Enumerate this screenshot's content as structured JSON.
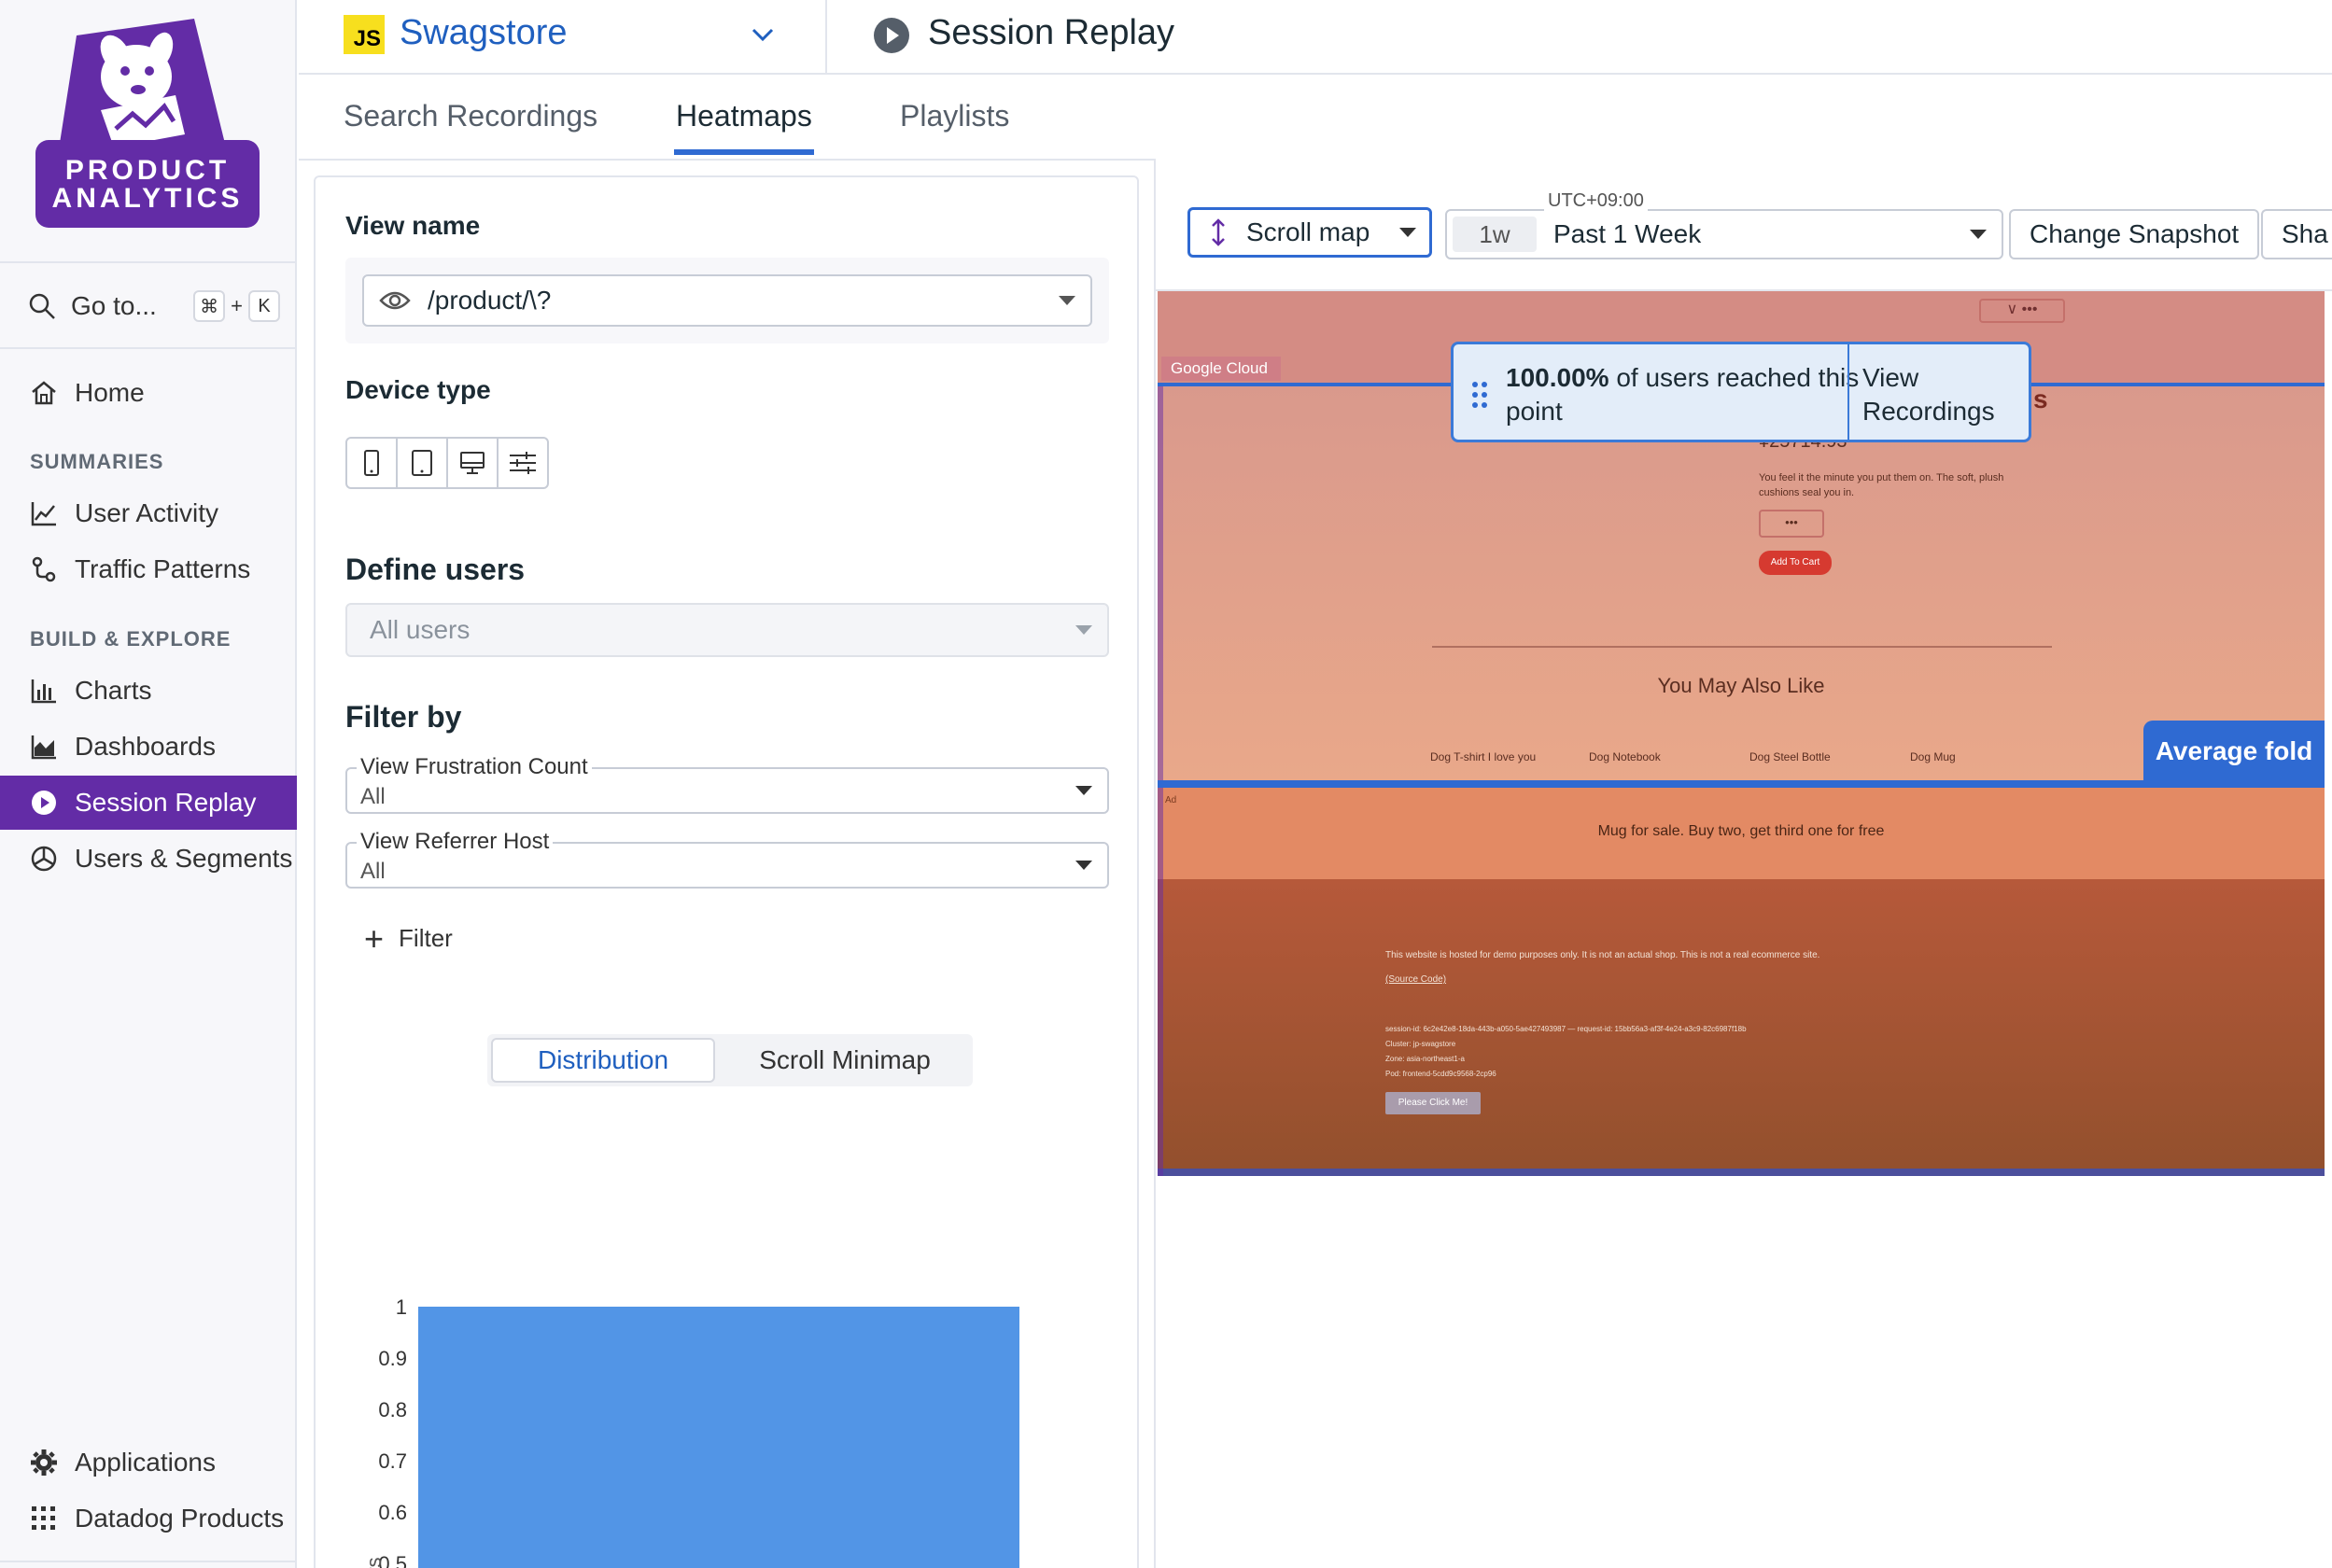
{
  "sidebar": {
    "logo": {
      "line1": "PRODUCT",
      "line2": "ANALYTICS"
    },
    "goto": {
      "label": "Go to...",
      "key1": "⌘",
      "plus": "+",
      "key2": "K"
    },
    "home": "Home",
    "summaries_label": "SUMMARIES",
    "summaries": [
      "User Activity",
      "Traffic Patterns"
    ],
    "build_label": "BUILD & EXPLORE",
    "build": [
      "Charts",
      "Dashboards",
      "Session Replay",
      "Users & Segments"
    ],
    "bottom": [
      "Applications",
      "Datadog Products"
    ]
  },
  "topbar": {
    "js_badge": "JS",
    "app_name": "Swagstore",
    "page_title": "Session Replay"
  },
  "tabs": [
    "Search Recordings",
    "Heatmaps",
    "Playlists"
  ],
  "panel": {
    "view_name_label": "View name",
    "view_name_value": "/product/\\?",
    "device_type_label": "Device type",
    "define_users_label": "Define users",
    "define_users_value": "All users",
    "filter_by_label": "Filter by",
    "filters": [
      {
        "label": "View Frustration Count",
        "value": "All"
      },
      {
        "label": "View Referrer Host",
        "value": "All"
      }
    ],
    "add_filter": "Filter",
    "segment": {
      "active": "Distribution",
      "other": "Scroll Minimap"
    }
  },
  "chart_data": {
    "type": "bar",
    "categories": [
      ""
    ],
    "values": [
      1
    ],
    "ylabel": "sers",
    "yticks": [
      "1",
      "0.9",
      "0.8",
      "0.7",
      "0.6",
      "0.5"
    ],
    "ylim": [
      0.45,
      1
    ],
    "bar_color": "#5295e6"
  },
  "toolbar": {
    "mode": "Scroll map",
    "timezone": "UTC+09:00",
    "time_badge": "1w",
    "time_value": "Past 1 Week",
    "change_snapshot": "Change Snapshot",
    "share": "Sha"
  },
  "snapshot": {
    "gc_badge": "Google Cloud",
    "tiny_button": "∨ •••",
    "title_fragment": "s",
    "price": "¥25714.93",
    "description": "You feel it the minute you put them on. The soft, plush cushions seal you in.",
    "qty": "•••",
    "add_to_cart": "Add To Cart",
    "may_like": "You May Also Like",
    "products": [
      "Dog T-shirt I love you",
      "Dog Notebook",
      "Dog Steel Bottle",
      "Dog Mug"
    ],
    "ad_label": "Ad",
    "ad_text": "Mug for sale. Buy two, get third one for free",
    "footer_line1": "This website is hosted for demo purposes only. It is not an actual shop. This is not a real ecommerce site.",
    "footer_source": "(Source Code)",
    "footer_session": "session-id: 6c2e42e8-18da-443b-a050-5ae427493987 — request-id: 15bb56a3-af3f-4e24-a3c9-82c6987f18b",
    "footer_cluster": "Cluster: jp-swagstore",
    "footer_zone": "Zone: asia-northeast1-a",
    "footer_pod": "Pod: frontend-5cdd9c9568-2cp96",
    "click_me": "Please Click Me!",
    "average_fold": "Average fold"
  },
  "tooltip": {
    "percent": "100.00%",
    "text": " of users reached this point",
    "link": "View Recordings"
  },
  "colors": {
    "brand": "#632ca6",
    "accent": "#2f6ad2",
    "link": "#1f5fbf"
  }
}
